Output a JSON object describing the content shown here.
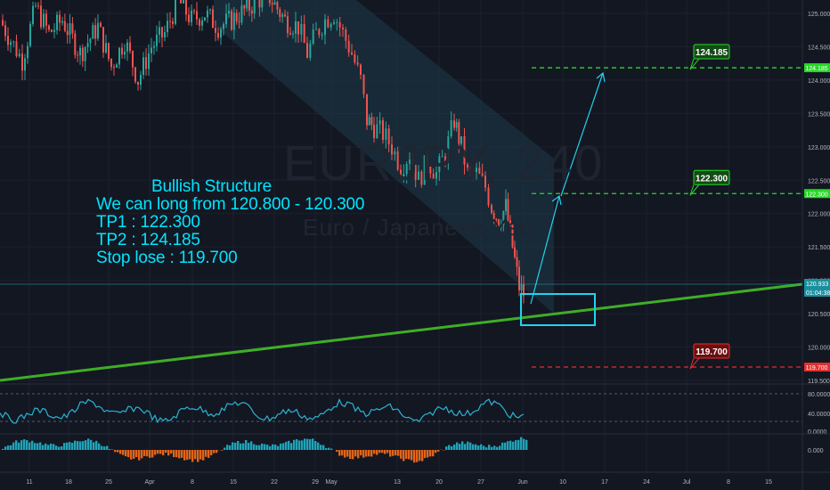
{
  "watermark": {
    "symbol": "EURJPY, 240",
    "name": "Euro / Japanese Yen"
  },
  "annotation": {
    "header": "Bullish Structure",
    "lines": [
      "We can long from  120.800 - 120.300",
      "TP1 : 122.300",
      "TP2 : 124.185",
      "Stop lose : 119.700"
    ]
  },
  "colors": {
    "background": "#131722",
    "up": "#26a69a",
    "down": "#ef5350",
    "trendline": "#3fae27",
    "target": "#27d827",
    "stop": "#e03030",
    "cyan": "#22d3ee",
    "channel": "#1e3a48",
    "rsi": "#2ab3d3",
    "hist_up": "#1fa3b8",
    "hist_down": "#e0641a"
  },
  "chart_data": {
    "type": "candlestick",
    "price_axis": {
      "min": 119.5,
      "max": 125.0,
      "ticks": [
        "125.000",
        "124.500",
        "124.000",
        "123.500",
        "123.000",
        "122.500",
        "122.000",
        "121.500",
        "121.000",
        "120.500",
        "120.000",
        "119.500"
      ]
    },
    "time_axis": {
      "ticks": [
        "11",
        "18",
        "25",
        "Apr",
        "8",
        "15",
        "22",
        "29",
        "May",
        "13",
        "20",
        "27",
        "Jun",
        "10",
        "17",
        "24",
        "Jul",
        "8",
        "15"
      ]
    },
    "levels": [
      {
        "label": "124.185",
        "price": 124.185,
        "kind": "target"
      },
      {
        "label": "122.300",
        "price": 122.3,
        "kind": "target"
      },
      {
        "label": "119.700",
        "price": 119.7,
        "kind": "stop"
      }
    ],
    "last_price": {
      "value": "120.933",
      "countdown": "01:04:38"
    },
    "rsi": {
      "ticks": [
        "80.0000",
        "40.0000",
        "0.0000"
      ],
      "levels": [
        80,
        20
      ]
    },
    "histogram": {
      "ticks": [
        "0.000"
      ]
    },
    "price_path": [
      [
        0,
        124.9
      ],
      [
        12,
        124.6
      ],
      [
        25,
        124.3
      ],
      [
        40,
        125.1
      ],
      [
        55,
        124.7
      ],
      [
        70,
        124.9
      ],
      [
        90,
        124.4
      ],
      [
        110,
        124.8
      ],
      [
        125,
        124.2
      ],
      [
        140,
        124.6
      ],
      [
        155,
        124.0
      ],
      [
        170,
        124.5
      ],
      [
        185,
        124.7
      ],
      [
        200,
        125.2
      ],
      [
        215,
        124.9
      ],
      [
        230,
        125.0
      ],
      [
        245,
        124.8
      ],
      [
        260,
        124.9
      ],
      [
        280,
        125.1
      ],
      [
        300,
        125.3
      ],
      [
        320,
        124.9
      ],
      [
        335,
        124.8
      ],
      [
        345,
        124.4
      ],
      [
        355,
        124.7
      ],
      [
        365,
        124.9
      ],
      [
        375,
        125.0
      ],
      [
        385,
        124.7
      ],
      [
        395,
        124.4
      ],
      [
        405,
        124.0
      ],
      [
        412,
        123.4
      ],
      [
        420,
        123.3
      ],
      [
        430,
        123.2
      ],
      [
        440,
        123.0
      ],
      [
        450,
        122.7
      ],
      [
        460,
        122.9
      ],
      [
        470,
        122.5
      ],
      [
        480,
        122.8
      ],
      [
        490,
        122.6
      ],
      [
        500,
        122.9
      ],
      [
        510,
        123.4
      ],
      [
        518,
        123.0
      ],
      [
        525,
        122.6
      ],
      [
        535,
        122.6
      ],
      [
        545,
        122.4
      ],
      [
        552,
        122.1
      ],
      [
        560,
        121.9
      ],
      [
        568,
        122.1
      ],
      [
        573,
        121.7
      ],
      [
        578,
        121.3
      ],
      [
        583,
        120.9
      ],
      [
        588,
        120.8
      ]
    ]
  }
}
